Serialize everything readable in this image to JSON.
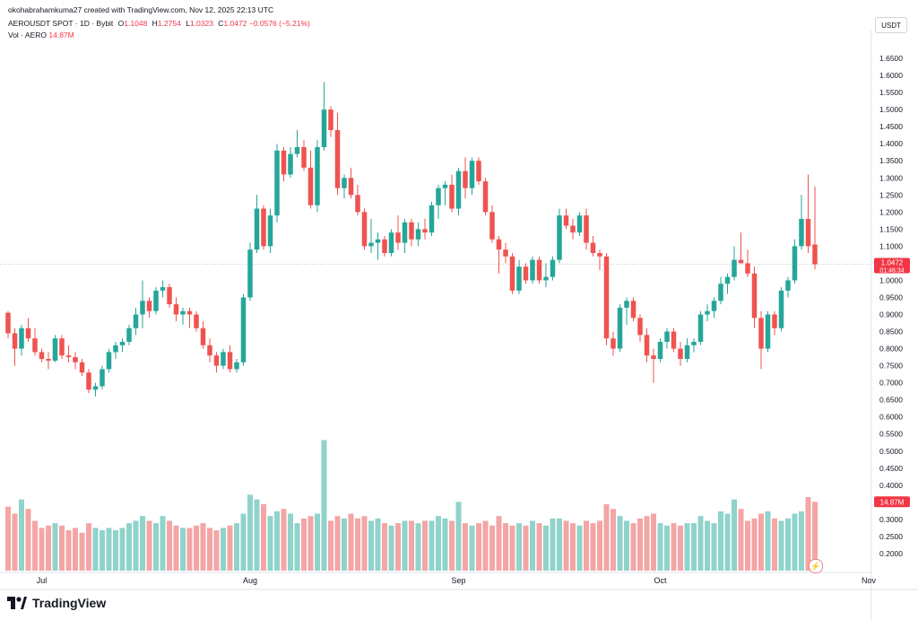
{
  "header": {
    "credit": "okohabrahamkuma27 created with TradingView.com, Nov 12, 2025 22:13 UTC",
    "symbol": "AEROUSDT SPOT · 1D · Bybit",
    "ohlc": [
      {
        "label": "O",
        "value": "1.1048"
      },
      {
        "label": "H",
        "value": "1.2754"
      },
      {
        "label": "L",
        "value": "1.0323"
      },
      {
        "label": "C",
        "value": "1.0472"
      }
    ],
    "change": "−0.0576 (−5.21%)",
    "volume_label": "Vol · AERO",
    "volume_value": "14.87M"
  },
  "currency_button": "USDT",
  "brand": "TradingView",
  "colors": {
    "up": "#26a69a",
    "down": "#ef5350",
    "volume_up": "#8fd3cb",
    "volume_down": "#f4a5a5",
    "price_tag": "#f23645"
  },
  "chart_data": {
    "type": "candlestick",
    "symbol": "AEROUSDT",
    "timeframe": "1D",
    "exchange": "Bybit",
    "ylim": [
      0.15,
      1.7
    ],
    "y_ticks": [
      "1.6500",
      "1.6000",
      "1.5500",
      "1.5000",
      "1.4500",
      "1.4000",
      "1.3500",
      "1.3000",
      "1.2500",
      "1.2000",
      "1.1500",
      "1.1000",
      "1.0500",
      "1.0000",
      "0.9500",
      "0.9000",
      "0.8500",
      "0.8000",
      "0.7500",
      "0.7000",
      "0.6500",
      "0.6000",
      "0.5500",
      "0.5000",
      "0.4500",
      "0.4000",
      "0.3500",
      "0.3000",
      "0.2500",
      "0.2000"
    ],
    "x_labels": [
      {
        "label": "Jul",
        "index": 5
      },
      {
        "label": "Aug",
        "index": 36
      },
      {
        "label": "Sep",
        "index": 67
      },
      {
        "label": "Oct",
        "index": 97
      },
      {
        "label": "Nov",
        "index": 128
      }
    ],
    "last_price": "1.0472",
    "countdown": "01:46:34",
    "last_volume": "14.87M",
    "volume_scale_max": 0.55,
    "candles": [
      [
        0.905,
        0.91,
        0.83,
        0.845,
        0.27
      ],
      [
        0.845,
        0.86,
        0.75,
        0.8,
        0.24
      ],
      [
        0.8,
        0.87,
        0.78,
        0.86,
        0.3
      ],
      [
        0.86,
        0.89,
        0.82,
        0.83,
        0.26
      ],
      [
        0.83,
        0.86,
        0.78,
        0.79,
        0.21
      ],
      [
        0.79,
        0.8,
        0.76,
        0.77,
        0.18
      ],
      [
        0.77,
        0.79,
        0.74,
        0.765,
        0.19
      ],
      [
        0.765,
        0.84,
        0.76,
        0.83,
        0.2
      ],
      [
        0.83,
        0.84,
        0.77,
        0.78,
        0.19
      ],
      [
        0.78,
        0.81,
        0.76,
        0.775,
        0.17
      ],
      [
        0.775,
        0.79,
        0.74,
        0.76,
        0.18
      ],
      [
        0.76,
        0.77,
        0.72,
        0.73,
        0.16
      ],
      [
        0.73,
        0.74,
        0.67,
        0.68,
        0.2
      ],
      [
        0.68,
        0.7,
        0.66,
        0.69,
        0.18
      ],
      [
        0.69,
        0.75,
        0.68,
        0.74,
        0.17
      ],
      [
        0.74,
        0.8,
        0.73,
        0.79,
        0.18
      ],
      [
        0.79,
        0.82,
        0.77,
        0.81,
        0.17
      ],
      [
        0.81,
        0.83,
        0.79,
        0.82,
        0.18
      ],
      [
        0.82,
        0.87,
        0.81,
        0.86,
        0.2
      ],
      [
        0.86,
        0.92,
        0.84,
        0.9,
        0.21
      ],
      [
        0.9,
        1.0,
        0.86,
        0.94,
        0.23
      ],
      [
        0.94,
        0.95,
        0.89,
        0.91,
        0.21
      ],
      [
        0.91,
        0.98,
        0.9,
        0.97,
        0.2
      ],
      [
        0.97,
        1.0,
        0.95,
        0.98,
        0.23
      ],
      [
        0.98,
        0.99,
        0.92,
        0.93,
        0.21
      ],
      [
        0.93,
        0.95,
        0.88,
        0.9,
        0.19
      ],
      [
        0.9,
        0.92,
        0.87,
        0.91,
        0.18
      ],
      [
        0.91,
        0.92,
        0.86,
        0.9,
        0.18
      ],
      [
        0.9,
        0.91,
        0.85,
        0.86,
        0.19
      ],
      [
        0.86,
        0.88,
        0.8,
        0.81,
        0.2
      ],
      [
        0.81,
        0.83,
        0.76,
        0.78,
        0.18
      ],
      [
        0.78,
        0.79,
        0.73,
        0.75,
        0.17
      ],
      [
        0.75,
        0.8,
        0.74,
        0.79,
        0.18
      ],
      [
        0.79,
        0.81,
        0.73,
        0.74,
        0.19
      ],
      [
        0.74,
        0.77,
        0.73,
        0.76,
        0.2
      ],
      [
        0.76,
        0.96,
        0.75,
        0.95,
        0.24
      ],
      [
        0.95,
        1.11,
        0.94,
        1.09,
        0.32
      ],
      [
        1.09,
        1.25,
        1.08,
        1.21,
        0.3
      ],
      [
        1.21,
        1.22,
        1.09,
        1.1,
        0.28
      ],
      [
        1.1,
        1.21,
        1.08,
        1.19,
        0.23
      ],
      [
        1.19,
        1.4,
        1.17,
        1.38,
        0.25
      ],
      [
        1.38,
        1.39,
        1.29,
        1.31,
        0.26
      ],
      [
        1.31,
        1.39,
        1.3,
        1.37,
        0.24
      ],
      [
        1.37,
        1.44,
        1.36,
        1.39,
        0.2
      ],
      [
        1.39,
        1.41,
        1.32,
        1.33,
        0.22
      ],
      [
        1.33,
        1.38,
        1.21,
        1.22,
        0.23
      ],
      [
        1.22,
        1.41,
        1.2,
        1.39,
        0.24
      ],
      [
        1.39,
        1.58,
        1.38,
        1.5,
        0.55
      ],
      [
        1.5,
        1.51,
        1.42,
        1.44,
        0.21
      ],
      [
        1.44,
        1.49,
        1.25,
        1.27,
        0.23
      ],
      [
        1.27,
        1.31,
        1.24,
        1.3,
        0.22
      ],
      [
        1.3,
        1.33,
        1.24,
        1.25,
        0.24
      ],
      [
        1.25,
        1.28,
        1.19,
        1.2,
        0.22
      ],
      [
        1.2,
        1.21,
        1.09,
        1.1,
        0.23
      ],
      [
        1.1,
        1.18,
        1.08,
        1.11,
        0.21
      ],
      [
        1.11,
        1.14,
        1.06,
        1.12,
        0.22
      ],
      [
        1.12,
        1.13,
        1.07,
        1.08,
        0.2
      ],
      [
        1.08,
        1.15,
        1.07,
        1.14,
        0.19
      ],
      [
        1.14,
        1.19,
        1.09,
        1.11,
        0.2
      ],
      [
        1.11,
        1.18,
        1.08,
        1.17,
        0.21
      ],
      [
        1.17,
        1.18,
        1.1,
        1.12,
        0.21
      ],
      [
        1.12,
        1.17,
        1.1,
        1.15,
        0.2
      ],
      [
        1.15,
        1.18,
        1.12,
        1.14,
        0.21
      ],
      [
        1.14,
        1.23,
        1.13,
        1.22,
        0.21
      ],
      [
        1.22,
        1.28,
        1.18,
        1.27,
        0.23
      ],
      [
        1.27,
        1.29,
        1.22,
        1.28,
        0.22
      ],
      [
        1.28,
        1.31,
        1.2,
        1.21,
        0.21
      ],
      [
        1.21,
        1.33,
        1.19,
        1.32,
        0.29
      ],
      [
        1.32,
        1.36,
        1.24,
        1.27,
        0.2
      ],
      [
        1.27,
        1.36,
        1.25,
        1.35,
        0.19
      ],
      [
        1.35,
        1.36,
        1.28,
        1.29,
        0.2
      ],
      [
        1.29,
        1.3,
        1.19,
        1.2,
        0.21
      ],
      [
        1.2,
        1.22,
        1.11,
        1.12,
        0.19
      ],
      [
        1.12,
        1.13,
        1.02,
        1.09,
        0.23
      ],
      [
        1.09,
        1.11,
        1.05,
        1.07,
        0.2
      ],
      [
        1.07,
        1.08,
        0.96,
        0.97,
        0.19
      ],
      [
        0.97,
        1.06,
        0.96,
        1.04,
        0.2
      ],
      [
        1.04,
        1.05,
        0.99,
        1.0,
        0.19
      ],
      [
        1.0,
        1.07,
        0.99,
        1.06,
        0.21
      ],
      [
        1.06,
        1.07,
        0.99,
        1.0,
        0.2
      ],
      [
        1.0,
        1.05,
        0.98,
        1.01,
        0.19
      ],
      [
        1.01,
        1.07,
        1.0,
        1.06,
        0.22
      ],
      [
        1.06,
        1.21,
        1.05,
        1.19,
        0.22
      ],
      [
        1.19,
        1.21,
        1.15,
        1.16,
        0.21
      ],
      [
        1.16,
        1.18,
        1.12,
        1.14,
        0.2
      ],
      [
        1.14,
        1.2,
        1.13,
        1.19,
        0.19
      ],
      [
        1.19,
        1.21,
        1.09,
        1.11,
        0.21
      ],
      [
        1.11,
        1.13,
        1.07,
        1.08,
        0.2
      ],
      [
        1.08,
        1.09,
        1.03,
        1.07,
        0.21
      ],
      [
        1.07,
        1.08,
        0.81,
        0.83,
        0.28
      ],
      [
        0.83,
        0.85,
        0.78,
        0.8,
        0.26
      ],
      [
        0.8,
        0.93,
        0.79,
        0.92,
        0.23
      ],
      [
        0.92,
        0.95,
        0.87,
        0.94,
        0.21
      ],
      [
        0.94,
        0.95,
        0.88,
        0.89,
        0.2
      ],
      [
        0.89,
        0.9,
        0.82,
        0.84,
        0.22
      ],
      [
        0.84,
        0.86,
        0.76,
        0.78,
        0.23
      ],
      [
        0.78,
        0.8,
        0.7,
        0.77,
        0.24
      ],
      [
        0.77,
        0.83,
        0.76,
        0.82,
        0.2
      ],
      [
        0.82,
        0.86,
        0.8,
        0.85,
        0.19
      ],
      [
        0.85,
        0.86,
        0.79,
        0.8,
        0.2
      ],
      [
        0.8,
        0.82,
        0.75,
        0.77,
        0.19
      ],
      [
        0.77,
        0.83,
        0.76,
        0.81,
        0.2
      ],
      [
        0.81,
        0.83,
        0.79,
        0.82,
        0.2
      ],
      [
        0.82,
        0.91,
        0.81,
        0.9,
        0.23
      ],
      [
        0.9,
        0.93,
        0.88,
        0.91,
        0.21
      ],
      [
        0.91,
        0.95,
        0.89,
        0.94,
        0.2
      ],
      [
        0.94,
        1.01,
        0.93,
        0.99,
        0.25
      ],
      [
        0.99,
        1.02,
        0.96,
        1.01,
        0.24
      ],
      [
        1.01,
        1.1,
        1.0,
        1.06,
        0.3
      ],
      [
        1.06,
        1.14,
        1.05,
        1.05,
        0.26
      ],
      [
        1.05,
        1.09,
        1.01,
        1.02,
        0.21
      ],
      [
        1.02,
        1.04,
        0.86,
        0.89,
        0.22
      ],
      [
        0.89,
        0.91,
        0.74,
        0.8,
        0.24
      ],
      [
        0.8,
        0.91,
        0.79,
        0.9,
        0.25
      ],
      [
        0.9,
        0.91,
        0.84,
        0.86,
        0.22
      ],
      [
        0.86,
        0.98,
        0.85,
        0.97,
        0.21
      ],
      [
        0.97,
        1.01,
        0.95,
        1.0,
        0.22
      ],
      [
        1.0,
        1.12,
        0.99,
        1.1,
        0.24
      ],
      [
        1.1,
        1.25,
        1.09,
        1.18,
        0.25
      ],
      [
        1.18,
        1.31,
        1.08,
        1.1,
        0.31
      ],
      [
        1.105,
        1.2754,
        1.0323,
        1.0472,
        0.29
      ]
    ]
  }
}
